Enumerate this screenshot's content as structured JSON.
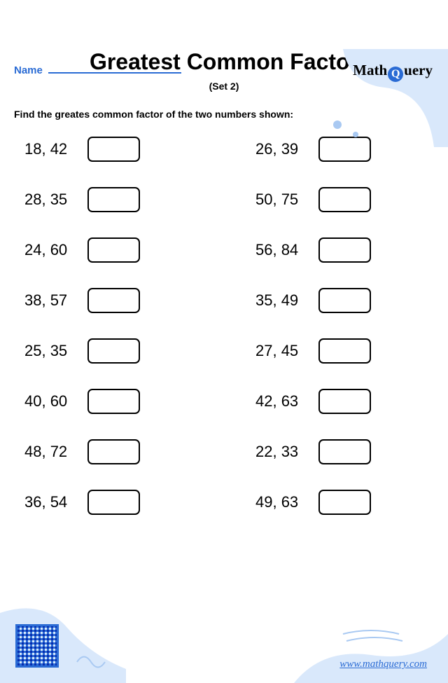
{
  "brand": {
    "prefix": "Math",
    "suffix": "uery",
    "q": "Q"
  },
  "name_label": "Name",
  "title": "Greatest Common Factor",
  "subtitle": "(Set 2)",
  "instruction": "Find the greates common factor of the two numbers shown:",
  "problems_left": [
    "18, 42",
    "28, 35",
    "24, 60",
    "38, 57",
    "25, 35",
    "40, 60",
    "48, 72",
    "36, 54"
  ],
  "problems_right": [
    "26, 39",
    "50, 75",
    "56, 84",
    "35, 49",
    "27, 45",
    "42, 63",
    "22, 33",
    "49, 63"
  ],
  "url": "www.mathquery.com",
  "colors": {
    "accent": "#2a6bd4",
    "decor": "#d9e8fb",
    "decor_dot": "#a9c9f2",
    "text": "#000000",
    "bg": "#ffffff"
  }
}
